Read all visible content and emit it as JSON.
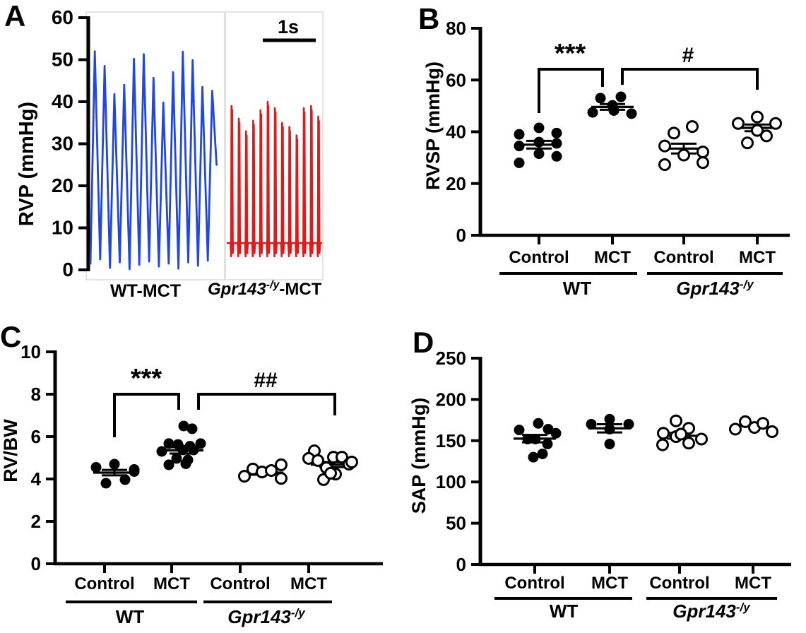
{
  "figure": {
    "panel_letters": [
      "A",
      "B",
      "C",
      "D"
    ],
    "background": "#ffffff",
    "marker_color": "#000000"
  },
  "xaxis_labels": {
    "treatments": [
      "Control",
      "MCT",
      "Control",
      "MCT"
    ],
    "genotypes": [
      {
        "label": "WT",
        "italic": false,
        "sup": ""
      },
      {
        "label": "Gpr143",
        "italic": true,
        "sup": "-/y"
      }
    ]
  },
  "chart_data": [
    {
      "panel": "A",
      "type": "line",
      "ylabel": "RVP (mmHg)",
      "ylim": [
        0,
        60
      ],
      "yticks": [
        0,
        10,
        20,
        30,
        40,
        50,
        60
      ],
      "scalebar_label": "1s",
      "series": [
        {
          "name": "WT-MCT",
          "color": "#2047e6",
          "shape": "spike",
          "peaks": [
            52,
            48.5,
            41.8,
            44,
            50.2,
            51.3,
            45.7,
            39.8,
            47,
            51.9,
            49.9,
            43.5,
            42.6
          ],
          "troughs": [
            1.5,
            2.5,
            0.5,
            1.8,
            0.2,
            1.2,
            2,
            0.8,
            1.5,
            0.3,
            1.8,
            1,
            2.2
          ],
          "cut_end": 25
        },
        {
          "name": "Gpr143-/y-MCT",
          "gene": "Gpr143",
          "sup": "-/y",
          "rest": "-MCT",
          "color": "#de1b1b",
          "shape": "notched",
          "base": 6.4,
          "dip": 3.2,
          "peaks": [
            39,
            36,
            33,
            35.5,
            38,
            40,
            38.5,
            35,
            34,
            32,
            38.5,
            39,
            36.5
          ]
        }
      ]
    },
    {
      "panel": "B",
      "type": "scatter",
      "ylabel": "RVSP (mmHg)",
      "ylim": [
        0,
        80
      ],
      "yticks": [
        0,
        20,
        40,
        60,
        80
      ],
      "groups": [
        {
          "treatment": "Control",
          "genotype": "WT",
          "marker": "filled",
          "mean": 35,
          "sem": 1.5,
          "points": [
            [
              -28,
              39
            ],
            [
              0,
              41.5
            ],
            [
              25,
              39.5
            ],
            [
              -28,
              34.5
            ],
            [
              0,
              36
            ],
            [
              25,
              35.5
            ],
            [
              0,
              31.5
            ],
            [
              25,
              30.5
            ],
            [
              -28,
              28
            ]
          ]
        },
        {
          "treatment": "MCT",
          "genotype": "WT",
          "marker": "filled",
          "mean": 49.6,
          "sem": 1.1,
          "points": [
            [
              -17,
              53
            ],
            [
              12,
              53.5
            ],
            [
              0,
              50.2
            ],
            [
              -28,
              47.5
            ],
            [
              2,
              48.2
            ],
            [
              27,
              47
            ]
          ]
        },
        {
          "treatment": "Control",
          "genotype": "Gpr143-/y",
          "marker": "open",
          "mean": 33.5,
          "sem": 1.9,
          "points": [
            [
              -14,
              39.5
            ],
            [
              12,
              42
            ],
            [
              -27,
              34.5
            ],
            [
              0,
              31
            ],
            [
              27,
              32.2
            ],
            [
              27,
              28.1
            ],
            [
              -27,
              27.3
            ]
          ]
        },
        {
          "treatment": "MCT",
          "genotype": "Gpr143-/y",
          "marker": "open",
          "mean": 41.5,
          "sem": 1.3,
          "points": [
            [
              -27,
              43.2
            ],
            [
              0,
              45.7
            ],
            [
              26,
              43.2
            ],
            [
              0,
              40.5
            ],
            [
              13,
              38.4
            ],
            [
              -14,
              35.7
            ]
          ]
        }
      ],
      "significance": [
        {
          "label": "***",
          "between": [
            "WT Control",
            "WT MCT"
          ]
        },
        {
          "label": "#",
          "between": [
            "WT MCT",
            "Gpr143-/y MCT"
          ]
        }
      ]
    },
    {
      "panel": "C",
      "type": "scatter",
      "ylabel": "RV/BW",
      "ylim": [
        0,
        10
      ],
      "yticks": [
        0,
        2,
        4,
        6,
        8,
        10
      ],
      "groups": [
        {
          "treatment": "Control",
          "genotype": "WT",
          "marker": "filled",
          "mean": 4.3,
          "sem": 0.13,
          "points": [
            [
              -26,
              4.55
            ],
            [
              0,
              4.7
            ],
            [
              28,
              4.45
            ],
            [
              -12,
              3.8
            ],
            [
              15,
              3.97
            ],
            [
              28,
              4.35
            ]
          ]
        },
        {
          "treatment": "MCT",
          "genotype": "WT",
          "marker": "filled",
          "mean": 5.35,
          "sem": 0.15,
          "points": [
            [
              2,
              6.5
            ],
            [
              14,
              6.37
            ],
            [
              -19,
              5.67
            ],
            [
              -6,
              5.63
            ],
            [
              11,
              5.55
            ],
            [
              26,
              5.67
            ],
            [
              -29,
              5.3
            ],
            [
              1,
              5.37
            ],
            [
              16,
              5.37
            ],
            [
              -8,
              4.97
            ],
            [
              8,
              4.9
            ],
            [
              -19,
              4.67
            ],
            [
              5,
              4.72
            ]
          ]
        },
        {
          "treatment": "Control",
          "genotype": "Gpr143-/y",
          "marker": "open",
          "mean": 4.3,
          "sem": 0.1,
          "points": [
            [
              -25,
              4.13
            ],
            [
              -13,
              4.47
            ],
            [
              0,
              4.33
            ],
            [
              13,
              4.4
            ],
            [
              27,
              4.67
            ],
            [
              27,
              4.03
            ]
          ]
        },
        {
          "treatment": "MCT",
          "genotype": "Gpr143-/y",
          "marker": "open",
          "mean": 4.68,
          "sem": 0.12,
          "points": [
            [
              -25,
              5.33
            ],
            [
              -33,
              4.97
            ],
            [
              -20,
              4.87
            ],
            [
              2,
              5.03
            ],
            [
              14,
              5.03
            ],
            [
              24,
              4.7
            ],
            [
              -8,
              4.53
            ],
            [
              5,
              4.23
            ],
            [
              -12,
              3.97
            ],
            [
              -2,
              4.27
            ],
            [
              28,
              4.8
            ]
          ]
        }
      ],
      "significance": [
        {
          "label": "***",
          "between": [
            "WT Control",
            "WT MCT"
          ]
        },
        {
          "label": "##",
          "between": [
            "WT MCT",
            "Gpr143-/y MCT"
          ]
        }
      ]
    },
    {
      "panel": "D",
      "type": "scatter",
      "ylabel": "SAP (mmHg)",
      "ylim": [
        0,
        250
      ],
      "yticks": [
        0,
        50,
        100,
        150,
        200,
        250
      ],
      "groups": [
        {
          "treatment": "Control",
          "genotype": "WT",
          "marker": "filled",
          "mean": 152.5,
          "sem": 4.5,
          "points": [
            [
              -22,
              163
            ],
            [
              5,
              171
            ],
            [
              19,
              164
            ],
            [
              30,
              159
            ],
            [
              -10,
              152
            ],
            [
              1,
              152
            ],
            [
              18,
              146
            ],
            [
              -2,
              130
            ],
            [
              11,
              134
            ]
          ]
        },
        {
          "treatment": "MCT",
          "genotype": "WT",
          "marker": "filled",
          "mean": 165,
          "sem": 5,
          "points": [
            [
              -26,
              170
            ],
            [
              0,
              176
            ],
            [
              27,
              170
            ],
            [
              0,
              164
            ],
            [
              0,
              146
            ]
          ]
        },
        {
          "treatment": "Control",
          "genotype": "Gpr143-/y",
          "marker": "open",
          "mean": 156,
          "sem": 3.5,
          "points": [
            [
              -5,
              174
            ],
            [
              13,
              165
            ],
            [
              -23,
              159
            ],
            [
              -5,
              155
            ],
            [
              13,
              147
            ],
            [
              -24,
              145
            ],
            [
              31,
              152
            ],
            [
              2,
              158
            ]
          ]
        },
        {
          "treatment": "MCT",
          "genotype": "Gpr143-/y",
          "marker": "open",
          "mean": null,
          "sem": null,
          "points": [
            [
              -25,
              164
            ],
            [
              -11,
              173
            ],
            [
              2,
              166
            ],
            [
              14,
              171
            ],
            [
              27,
              161
            ]
          ]
        }
      ],
      "significance": []
    }
  ]
}
